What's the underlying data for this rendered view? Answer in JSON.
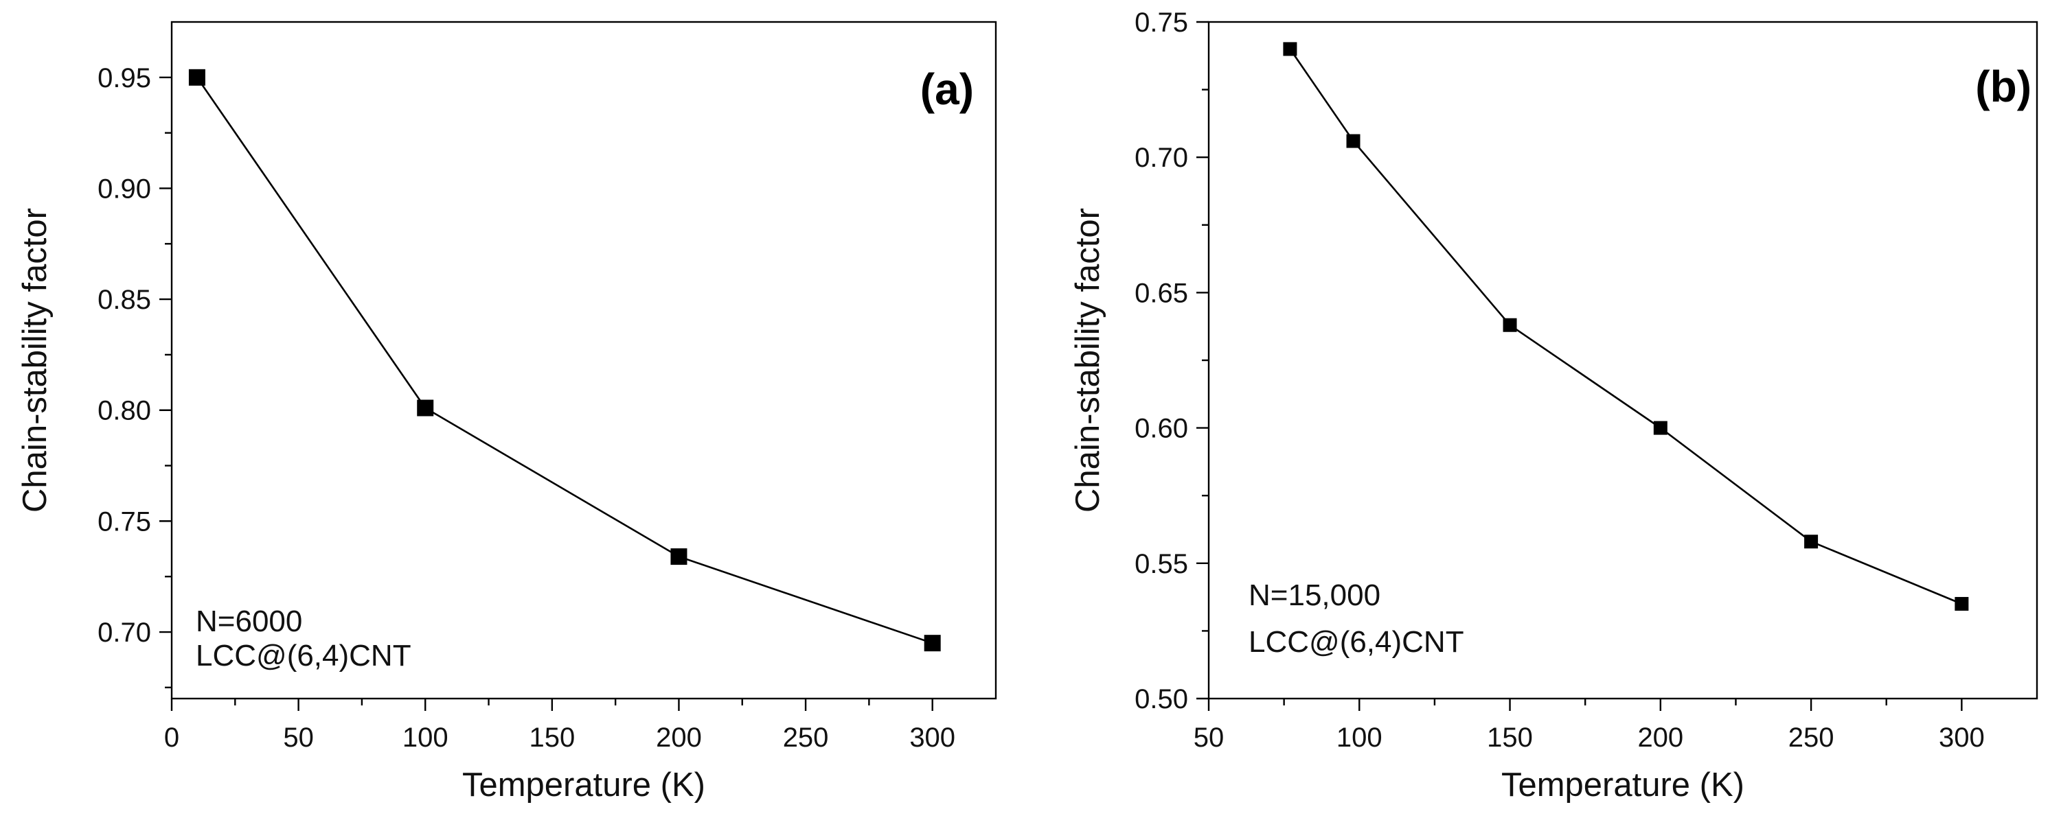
{
  "colors": {
    "axis": "#000000",
    "marker": "#000000",
    "line": "#000000",
    "background": "#ffffff"
  },
  "chart_data": [
    {
      "type": "line",
      "panel": "(a)",
      "title": "",
      "xlabel": "Temperature (K)",
      "ylabel": "Chain-stability factor",
      "xlim": [
        0,
        325
      ],
      "ylim": [
        0.67,
        0.975
      ],
      "xticks": [
        0,
        50,
        100,
        150,
        200,
        250,
        300
      ],
      "xtick_labels": [
        "0",
        "50",
        "100",
        "150",
        "200",
        "250",
        "300"
      ],
      "yticks": [
        0.7,
        0.75,
        0.8,
        0.85,
        0.9,
        0.95
      ],
      "ytick_labels": [
        "0.70",
        "0.75",
        "0.80",
        "0.85",
        "0.90",
        "0.95"
      ],
      "annotation_lines": [
        "N=6000",
        "LCC@(6,4)CNT"
      ],
      "marker": "square",
      "series": [
        {
          "name": "N=6000",
          "x": [
            10,
            100,
            200,
            300
          ],
          "y": [
            0.95,
            0.801,
            0.734,
            0.695
          ]
        }
      ]
    },
    {
      "type": "line",
      "panel": "(b)",
      "title": "",
      "xlabel": "Temperature (K)",
      "ylabel": "Chain-stability factor",
      "xlim": [
        50,
        325
      ],
      "ylim": [
        0.5,
        0.75
      ],
      "xticks": [
        50,
        100,
        150,
        200,
        250,
        300
      ],
      "xtick_labels": [
        "50",
        "100",
        "150",
        "200",
        "250",
        "300"
      ],
      "yticks": [
        0.5,
        0.55,
        0.6,
        0.65,
        0.7,
        0.75
      ],
      "ytick_labels": [
        "0.50",
        "0.55",
        "0.60",
        "0.65",
        "0.70",
        "0.75"
      ],
      "annotation_lines": [
        "N=15,000",
        "LCC@(6,4)CNT"
      ],
      "marker": "square",
      "series": [
        {
          "name": "N=15,000",
          "x": [
            77,
            98,
            150,
            200,
            250,
            300
          ],
          "y": [
            0.74,
            0.706,
            0.638,
            0.6,
            0.558,
            0.535
          ]
        }
      ]
    }
  ]
}
